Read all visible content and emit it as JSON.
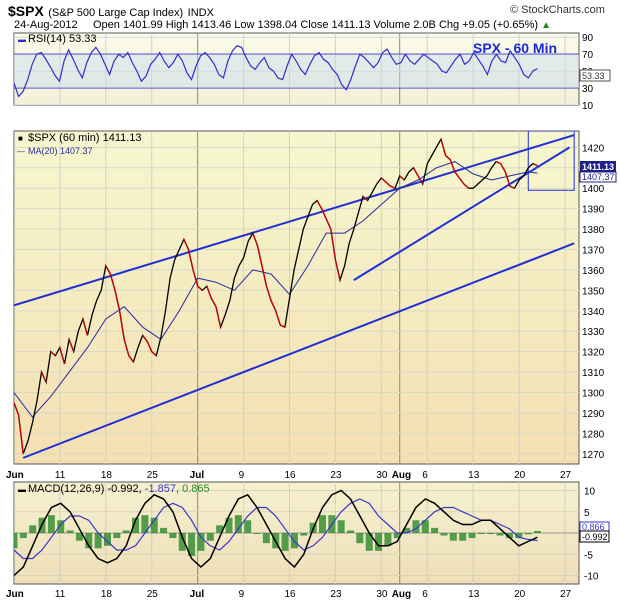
{
  "header": {
    "symbol": "$SPX",
    "name": "(S&P 500 Large Cap Index)",
    "exchange": "INDX",
    "watermark": "© StockCharts.com",
    "date": "24-Aug-2012",
    "quote": "Open 1401.99  High 1413.46  Low 1398.04  Close 1411.13  Volume 2.0B  Chg +9.05 (+0.65%)",
    "quote_arrow": "▲"
  },
  "chart_data": [
    {
      "type": "line",
      "panel": "RSI",
      "label": "RSI(14) 53.33",
      "title": "SPX - 60 Min",
      "ylim": [
        10,
        95
      ],
      "yticks": [
        90,
        70,
        50,
        30,
        10
      ],
      "reference_lines": [
        70,
        30
      ],
      "last_value_tag": "53.33",
      "colors": {
        "line": "#3030c8",
        "band_fill": "#c8dcf0",
        "annotation": "#1a2ad8"
      },
      "series": [
        {
          "name": "RSI(14)",
          "values": [
            36,
            20,
            26,
            40,
            58,
            70,
            72,
            64,
            55,
            45,
            38,
            62,
            75,
            64,
            52,
            42,
            60,
            72,
            78,
            70,
            58,
            46,
            62,
            70,
            66,
            72,
            60,
            50,
            38,
            44,
            58,
            64,
            72,
            62,
            54,
            60,
            70,
            62,
            48,
            40,
            56,
            68,
            72,
            66,
            58,
            46,
            42,
            62,
            74,
            80,
            78,
            66,
            56,
            52,
            60,
            66,
            54,
            50,
            42,
            40,
            56,
            70,
            62,
            52,
            46,
            58,
            68,
            72,
            64,
            60,
            52,
            46,
            34,
            28,
            40,
            56,
            70,
            66,
            60,
            54,
            60,
            72,
            76,
            66,
            58,
            60,
            70,
            62,
            58,
            64,
            70,
            66,
            62,
            58,
            50,
            48,
            56,
            64,
            70,
            58,
            62,
            72,
            64,
            56,
            46,
            62,
            70,
            62,
            60,
            74,
            66,
            58,
            46,
            42,
            50,
            53
          ]
        }
      ]
    },
    {
      "type": "line",
      "panel": "price",
      "label": "$SPX (60 min) 1411.13",
      "ma_label": "MA(20) 1407.37",
      "ylim": [
        1265,
        1428
      ],
      "yticks": [
        1420,
        1410,
        1400,
        1390,
        1380,
        1370,
        1360,
        1350,
        1340,
        1330,
        1320,
        1310,
        1300,
        1290,
        1280,
        1270
      ],
      "x_tick_labels": [
        "Jun",
        "11",
        "18",
        "25",
        "Jul",
        "9",
        "16",
        "23",
        "30",
        "Aug",
        "6",
        "13",
        "20",
        "27"
      ],
      "x_tick_positions": [
        0,
        5,
        10,
        15,
        20,
        25,
        30,
        35,
        40,
        42,
        45,
        50,
        55,
        60
      ],
      "x_range": [
        0,
        60
      ],
      "last_value_tags": {
        "close": "1411.13",
        "ma": "1407.37"
      },
      "colors": {
        "price": "#000000",
        "down_bar": "#cc0000",
        "ma": "#2a2a9e",
        "trendline": "#1f2fd6",
        "tag": "#20208a"
      },
      "series": [
        {
          "name": "$SPX",
          "points": [
            [
              0,
              1295
            ],
            [
              0.5,
              1289
            ],
            [
              1,
              1270
            ],
            [
              1.5,
              1276
            ],
            [
              2,
              1285
            ],
            [
              2.5,
              1296
            ],
            [
              3,
              1310
            ],
            [
              3.5,
              1305
            ],
            [
              4,
              1320
            ],
            [
              4.5,
              1318
            ],
            [
              5,
              1322
            ],
            [
              5.5,
              1314
            ],
            [
              6,
              1326
            ],
            [
              6.5,
              1320
            ],
            [
              7,
              1330
            ],
            [
              7.5,
              1336
            ],
            [
              8,
              1328
            ],
            [
              8.5,
              1338
            ],
            [
              9,
              1345
            ],
            [
              9.5,
              1350
            ],
            [
              10,
              1362
            ],
            [
              10.5,
              1358
            ],
            [
              11,
              1350
            ],
            [
              11.5,
              1340
            ],
            [
              12,
              1326
            ],
            [
              12.5,
              1318
            ],
            [
              13,
              1315
            ],
            [
              13.5,
              1322
            ],
            [
              14,
              1328
            ],
            [
              14.5,
              1325
            ],
            [
              15,
              1320
            ],
            [
              15.5,
              1318
            ],
            [
              16,
              1327
            ],
            [
              16.5,
              1340
            ],
            [
              17,
              1356
            ],
            [
              17.5,
              1365
            ],
            [
              18,
              1370
            ],
            [
              18.5,
              1375
            ],
            [
              19,
              1370
            ],
            [
              19.5,
              1360
            ],
            [
              20,
              1352
            ],
            [
              20.5,
              1350
            ],
            [
              21,
              1352
            ],
            [
              21.5,
              1346
            ],
            [
              22,
              1342
            ],
            [
              22.5,
              1332
            ],
            [
              23,
              1338
            ],
            [
              23.5,
              1345
            ],
            [
              24,
              1356
            ],
            [
              24.5,
              1362
            ],
            [
              25,
              1366
            ],
            [
              25.5,
              1374
            ],
            [
              26,
              1378
            ],
            [
              26.5,
              1372
            ],
            [
              27,
              1362
            ],
            [
              27.5,
              1352
            ],
            [
              28,
              1345
            ],
            [
              28.5,
              1340
            ],
            [
              29,
              1333
            ],
            [
              29.5,
              1332
            ],
            [
              30,
              1346
            ],
            [
              30.5,
              1360
            ],
            [
              31,
              1370
            ],
            [
              31.5,
              1380
            ],
            [
              32,
              1386
            ],
            [
              32.5,
              1392
            ],
            [
              33,
              1394
            ],
            [
              33.5,
              1390
            ],
            [
              34,
              1385
            ],
            [
              34.5,
              1380
            ],
            [
              35,
              1365
            ],
            [
              35.5,
              1355
            ],
            [
              36,
              1362
            ],
            [
              36.5,
              1373
            ],
            [
              37,
              1380
            ],
            [
              37.5,
              1388
            ],
            [
              38,
              1396
            ],
            [
              38.5,
              1394
            ],
            [
              39,
              1398
            ],
            [
              39.5,
              1402
            ],
            [
              40,
              1405
            ],
            [
              40.5,
              1403
            ],
            [
              41,
              1401
            ],
            [
              41.5,
              1400
            ],
            [
              42,
              1406
            ],
            [
              42.5,
              1404
            ],
            [
              43,
              1408
            ],
            [
              43.5,
              1410
            ],
            [
              44,
              1406
            ],
            [
              44.5,
              1402
            ],
            [
              45,
              1412
            ],
            [
              45.5,
              1416
            ],
            [
              46,
              1420
            ],
            [
              46.5,
              1424
            ],
            [
              47,
              1416
            ],
            [
              47.5,
              1414
            ],
            [
              48,
              1408
            ],
            [
              48.5,
              1405
            ],
            [
              49,
              1402
            ],
            [
              49.5,
              1400
            ],
            [
              50,
              1400
            ],
            [
              50.5,
              1402
            ],
            [
              51,
              1404
            ],
            [
              51.5,
              1406
            ],
            [
              52,
              1410
            ],
            [
              52.5,
              1413
            ],
            [
              53,
              1412
            ],
            [
              53.5,
              1408
            ],
            [
              54,
              1401
            ],
            [
              54.5,
              1400
            ],
            [
              55,
              1404
            ],
            [
              55.5,
              1406
            ],
            [
              56,
              1410
            ],
            [
              56.5,
              1412
            ],
            [
              57,
              1411
            ]
          ]
        },
        {
          "name": "MA(20)",
          "points": [
            [
              0,
              1300
            ],
            [
              2,
              1288
            ],
            [
              4,
              1298
            ],
            [
              6,
              1310
            ],
            [
              8,
              1322
            ],
            [
              10,
              1336
            ],
            [
              12,
              1342
            ],
            [
              14,
              1332
            ],
            [
              16,
              1326
            ],
            [
              18,
              1340
            ],
            [
              20,
              1356
            ],
            [
              22,
              1354
            ],
            [
              24,
              1350
            ],
            [
              26,
              1360
            ],
            [
              28,
              1358
            ],
            [
              30,
              1348
            ],
            [
              32,
              1362
            ],
            [
              34,
              1378
            ],
            [
              36,
              1378
            ],
            [
              38,
              1384
            ],
            [
              40,
              1392
            ],
            [
              42,
              1400
            ],
            [
              44,
              1404
            ],
            [
              46,
              1410
            ],
            [
              48,
              1413
            ],
            [
              50,
              1407
            ],
            [
              52,
              1404
            ],
            [
              54,
              1406
            ],
            [
              56,
              1408
            ],
            [
              57,
              1407.4
            ]
          ]
        }
      ],
      "trendlines": [
        {
          "from": [
            -0.5,
            1342
          ],
          "to": [
            61,
            1426
          ]
        },
        {
          "from": [
            1,
            1268
          ],
          "to": [
            61,
            1373
          ]
        },
        {
          "from": [
            37,
            1355
          ],
          "to": [
            60.5,
            1420
          ]
        }
      ],
      "highlight_box": {
        "x": [
          56,
          61
        ],
        "y": [
          1399,
          1428
        ]
      }
    },
    {
      "type": "bar",
      "panel": "MACD",
      "label": "MACD(12,26,9) -0.992, -1.857, 0.865",
      "label_parts": {
        "prefix": "MACD(12,26,9) -0.992,",
        "signal": " -1.857,",
        "hist": " 0.865"
      },
      "ylim": [
        -12,
        12
      ],
      "yticks": [
        10,
        5,
        0,
        -5,
        -10
      ],
      "last_value_tags": {
        "signal": "0.866",
        "macd": "-0.992"
      },
      "colors": {
        "macd": "#000000",
        "signal": "#3838c8",
        "histogram": "#2a8a2a"
      },
      "x_tick_labels": [
        "Jun",
        "11",
        "18",
        "25",
        "Jul",
        "9",
        "16",
        "23",
        "30",
        "Aug",
        "6",
        "13",
        "20",
        "27"
      ],
      "series": [
        {
          "name": "MACD",
          "values": [
            -10,
            -8,
            -3,
            2,
            6,
            7,
            5,
            1,
            -3,
            -6,
            -7,
            -6,
            -3,
            3,
            7,
            9,
            8,
            5,
            -1,
            -6,
            -8,
            -6,
            -1,
            4,
            8,
            9,
            6,
            2,
            -2,
            -6,
            -8,
            -5,
            1,
            6,
            9,
            10,
            8,
            4,
            0,
            -3,
            -3,
            -2,
            2,
            6,
            8,
            7,
            5,
            3,
            2,
            2,
            3,
            3,
            1,
            -1,
            -3,
            -2,
            -1
          ]
        },
        {
          "name": "signal",
          "values": [
            -4,
            -6,
            -6,
            -4,
            -1,
            2,
            4,
            4,
            3,
            0,
            -2,
            -4,
            -4,
            -3,
            0,
            3,
            6,
            7,
            6,
            3,
            -1,
            -3,
            -4,
            -2,
            1,
            4,
            6,
            6,
            4,
            1,
            -2,
            -4,
            -3,
            -1,
            2,
            5,
            7,
            8,
            7,
            4,
            2,
            0,
            0,
            1,
            3,
            5,
            6,
            6,
            5,
            4,
            3,
            3,
            2,
            1,
            -1,
            -1.5,
            -1.8
          ]
        }
      ]
    }
  ]
}
